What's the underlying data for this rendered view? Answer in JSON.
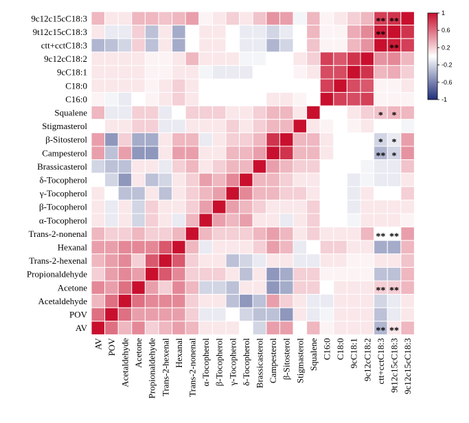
{
  "chart_data": {
    "type": "heatmap",
    "title": "",
    "labels": [
      "9c12c15cC18:3",
      "9t12c15cC18:3",
      "ctt+cctC18:3",
      "9c12cC18:2",
      "9cC18:1",
      "C18:0",
      "C16:0",
      "Squalene",
      "Stigmasterol",
      "β-Sitosterol",
      "Campesterol",
      "Brassicasterol",
      "δ-Tocopherol",
      "γ-Tocopherol",
      "β-Tocopherol",
      "α-Tocopherol",
      "Trans-2-nonenal",
      "Hexanal",
      "Trans-2-hexenal",
      "Propionaldehyde",
      "Acetone",
      "Acetaldehyde",
      "POV",
      "AV"
    ],
    "matrix": [
      [
        1,
        0.85,
        0.8,
        0.3,
        0.2,
        0.1,
        0.05,
        0.3,
        -0.05,
        0.4,
        0.45,
        0.25,
        0.1,
        0.2,
        0.1,
        0.05,
        0.4,
        0.3,
        0.25,
        0.3,
        0.3,
        0.1,
        0.1,
        0.3
      ],
      [
        0.85,
        1,
        0.95,
        0.5,
        0.35,
        0.05,
        0.05,
        0.3,
        0,
        -0.1,
        -0.2,
        -0.1,
        -0.1,
        0,
        0.1,
        0.1,
        0,
        -0.4,
        0.1,
        -0.3,
        0.2,
        -0.1,
        -0.1,
        0.1
      ],
      [
        0.8,
        0.95,
        1,
        0.45,
        0.3,
        0.05,
        0.05,
        0.25,
        0,
        -0.2,
        -0.35,
        -0.1,
        -0.1,
        0,
        0.1,
        0.1,
        0,
        -0.4,
        0.1,
        -0.3,
        0.2,
        -0.2,
        -0.3,
        -0.35
      ],
      [
        0.3,
        0.5,
        0.45,
        1,
        0.85,
        0.7,
        0.8,
        0.2,
        0.1,
        0,
        0,
        -0.05,
        -0.05,
        0.1,
        0.1,
        0.1,
        0.3,
        0.1,
        0.05,
        0.05,
        0.1,
        0.1,
        0.1,
        0.1
      ],
      [
        0.2,
        0.35,
        0.3,
        0.85,
        1,
        0.75,
        0.75,
        0.1,
        0.05,
        0,
        0,
        0,
        -0.1,
        -0.1,
        -0.1,
        -0.05,
        0.1,
        0.1,
        0.05,
        0.05,
        0.1,
        0.1,
        0.1,
        0.1
      ],
      [
        0.1,
        0.05,
        0.05,
        0.7,
        0.75,
        1,
        0.8,
        0,
        0,
        0,
        0,
        0,
        0,
        0,
        0,
        0,
        0.1,
        0.2,
        0.1,
        0.05,
        0.1,
        0.1,
        0.1,
        0.1
      ],
      [
        0.05,
        0.05,
        0.05,
        0.8,
        0.75,
        0.8,
        1,
        0,
        0.05,
        0.1,
        0.1,
        0,
        0,
        0,
        0,
        0,
        0.1,
        0.2,
        0.1,
        0.05,
        0,
        -0.1,
        -0.05,
        0.05
      ],
      [
        0.3,
        0.3,
        0.25,
        0.2,
        0.1,
        0,
        0,
        1,
        0.1,
        0.3,
        0.3,
        0.2,
        0.1,
        0.1,
        0.2,
        0.2,
        0.2,
        0,
        -0.1,
        0.2,
        0.2,
        -0.1,
        -0.1,
        0.3
      ],
      [
        -0.05,
        0,
        0,
        0.1,
        0.05,
        0,
        0.05,
        0.1,
        1,
        0.3,
        0.3,
        0.2,
        0.1,
        0.2,
        0.1,
        0.1,
        0.1,
        -0.1,
        -0.1,
        0.2,
        0.2,
        0.1,
        0.1,
        0
      ],
      [
        0.4,
        -0.1,
        -0.2,
        0,
        0,
        0,
        0.1,
        0.3,
        0.3,
        1,
        0.85,
        0.3,
        0.2,
        0.2,
        0.1,
        -0.1,
        0.3,
        0.3,
        0.1,
        -0.4,
        -0.4,
        0.2,
        -0.5,
        0.4
      ],
      [
        0.45,
        -0.2,
        -0.35,
        0,
        0,
        0,
        0.1,
        0.3,
        0.3,
        0.85,
        1,
        0.4,
        0.3,
        0.3,
        0.1,
        0.1,
        0.4,
        0.4,
        0.1,
        -0.5,
        -0.5,
        0.4,
        -0.3,
        0.4
      ],
      [
        0.25,
        -0.1,
        -0.1,
        -0.05,
        0,
        0,
        0,
        0.2,
        0.2,
        0.3,
        0.4,
        1,
        0.3,
        0.3,
        0.2,
        0.1,
        0.3,
        0.2,
        -0.1,
        0.1,
        0.1,
        -0.3,
        -0.3,
        -0.2
      ],
      [
        0.1,
        -0.1,
        -0.1,
        -0.05,
        -0.1,
        0,
        0,
        0.1,
        0.1,
        0.2,
        0.3,
        0.3,
        1,
        0.5,
        0.3,
        0.4,
        0.2,
        0.1,
        -0.2,
        -0.3,
        0.1,
        -0.5,
        -0.2,
        0
      ],
      [
        0.2,
        0,
        0,
        0.1,
        -0.1,
        0,
        0,
        0.1,
        0.2,
        0.2,
        0.3,
        0.3,
        0.5,
        1,
        0.4,
        0.3,
        0.2,
        0.1,
        -0.3,
        0.1,
        -0.3,
        -0.3,
        0,
        0.1
      ],
      [
        0.1,
        0.1,
        0.1,
        0.1,
        -0.1,
        0,
        0,
        0.2,
        0.1,
        0.1,
        0.1,
        0.2,
        0.3,
        0.4,
        1,
        0.4,
        0.2,
        0.1,
        0.1,
        0.2,
        -0.2,
        0.1,
        -0.1,
        0.1
      ],
      [
        0.05,
        0.1,
        0.1,
        0.1,
        -0.05,
        0,
        0,
        0.2,
        0.1,
        -0.1,
        0.1,
        0.1,
        0.4,
        0.3,
        0.4,
        1,
        0.3,
        -0.1,
        0.1,
        0.2,
        -0.2,
        0.1,
        -0.1,
        0.1
      ],
      [
        0.4,
        0,
        0,
        0.3,
        0.1,
        0.1,
        0.1,
        0.2,
        0.1,
        0.3,
        0.4,
        0.3,
        0.2,
        0.2,
        0.2,
        0.3,
        1,
        0.3,
        0.2,
        0.2,
        0.3,
        0.2,
        0.2,
        0.3
      ],
      [
        0.3,
        -0.4,
        -0.4,
        0.1,
        0.1,
        0.2,
        0.2,
        0,
        -0.1,
        0.3,
        0.4,
        0.2,
        0.1,
        0.1,
        0.1,
        -0.1,
        0.3,
        1,
        0.7,
        0.5,
        0.5,
        0.5,
        0.4,
        0.4
      ],
      [
        0.25,
        0.1,
        0.1,
        0.05,
        0.05,
        0.1,
        0.1,
        -0.1,
        -0.1,
        0.1,
        0.1,
        -0.1,
        -0.2,
        -0.3,
        0.1,
        0.1,
        0.2,
        0.7,
        1,
        0.7,
        0.2,
        0.5,
        0.4,
        0.3
      ],
      [
        0.3,
        -0.3,
        -0.3,
        0.05,
        0.05,
        0.05,
        0.05,
        0.2,
        0.2,
        -0.4,
        -0.5,
        0.1,
        -0.3,
        0.1,
        0.2,
        0.2,
        0.2,
        0.5,
        0.7,
        1,
        0.4,
        0.5,
        0.4,
        0.2
      ],
      [
        0.3,
        0.2,
        0.2,
        0.1,
        0.1,
        0.1,
        0,
        0.2,
        0.2,
        -0.4,
        -0.5,
        0.1,
        0.1,
        -0.3,
        -0.2,
        -0.2,
        0.3,
        0.5,
        0.2,
        0.4,
        1,
        0.6,
        0.4,
        0.5
      ],
      [
        0.1,
        -0.1,
        -0.2,
        0.1,
        0.1,
        0.1,
        -0.1,
        -0.1,
        0.1,
        0.2,
        0.4,
        -0.3,
        -0.5,
        -0.3,
        0.1,
        0.1,
        0.2,
        0.5,
        0.5,
        0.5,
        0.6,
        1,
        0.6,
        0.3
      ],
      [
        0.1,
        -0.1,
        -0.3,
        0.1,
        0.1,
        0.1,
        -0.05,
        -0.1,
        0.1,
        -0.5,
        -0.3,
        -0.3,
        -0.2,
        0,
        -0.1,
        -0.1,
        0.2,
        0.4,
        0.4,
        0.4,
        0.4,
        0.6,
        1,
        0.6
      ],
      [
        0.3,
        0.1,
        -0.35,
        0.1,
        0.1,
        0.1,
        0.05,
        0.3,
        0,
        0.4,
        0.4,
        -0.2,
        0,
        0.1,
        0.1,
        0.1,
        0.3,
        0.4,
        0.3,
        0.2,
        0.5,
        0.3,
        0.6,
        1
      ]
    ],
    "significance": [
      {
        "row": "9c12c15cC18:3",
        "col": "ctt+cctC18:3",
        "mark": "**"
      },
      {
        "row": "9c12c15cC18:3",
        "col": "9t12c15cC18:3",
        "mark": "**"
      },
      {
        "row": "9t12c15cC18:3",
        "col": "ctt+cctC18:3",
        "mark": "**"
      },
      {
        "row": "ctt+cctC18:3",
        "col": "9t12c15cC18:3",
        "mark": "**"
      },
      {
        "row": "Squalene",
        "col": "ctt+cctC18:3",
        "mark": "*"
      },
      {
        "row": "Squalene",
        "col": "9t12c15cC18:3",
        "mark": "*"
      },
      {
        "row": "β-Sitosterol",
        "col": "ctt+cctC18:3",
        "mark": "*"
      },
      {
        "row": "β-Sitosterol",
        "col": "9t12c15cC18:3",
        "mark": "*"
      },
      {
        "row": "Campesterol",
        "col": "ctt+cctC18:3",
        "mark": "**"
      },
      {
        "row": "Campesterol",
        "col": "9t12c15cC18:3",
        "mark": "*"
      },
      {
        "row": "Trans-2-nonenal",
        "col": "ctt+cctC18:3",
        "mark": "**"
      },
      {
        "row": "Trans-2-nonenal",
        "col": "9t12c15cC18:3",
        "mark": "**"
      },
      {
        "row": "Acetone",
        "col": "ctt+cctC18:3",
        "mark": "**"
      },
      {
        "row": "Acetone",
        "col": "9t12c15cC18:3",
        "mark": "**"
      },
      {
        "row": "AV",
        "col": "ctt+cctC18:3",
        "mark": "**"
      },
      {
        "row": "AV",
        "col": "9t12c15cC18:3",
        "mark": "**"
      }
    ],
    "colorbar": {
      "range": [
        -1,
        1
      ],
      "ticks": [
        "1",
        "0.6",
        "0.2",
        "-0.2",
        "-0.6",
        "-1"
      ],
      "tick_values": [
        1,
        0.6,
        0.2,
        -0.2,
        -0.6,
        -1
      ]
    },
    "colors": {
      "negative": "#1f2f7a",
      "zero": "#ffffff",
      "positive": "#c8102e",
      "grid": "#ffffff"
    },
    "grid": true,
    "legend_position": "right"
  }
}
